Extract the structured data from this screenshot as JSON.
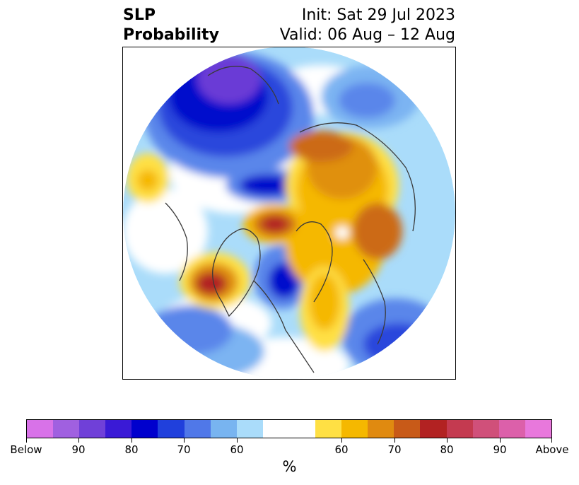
{
  "title": {
    "left_line1": "SLP",
    "left_line2": "Probability",
    "right_line1": "Init: Sat 29 Jul 2023",
    "right_line2": "Valid: 06 Aug – 12 Aug"
  },
  "colorbar": {
    "colors": [
      "#d872e8",
      "#a060e0",
      "#7040d8",
      "#3a1ad6",
      "#0000cd",
      "#2040dc",
      "#5078e8",
      "#78b4f0",
      "#aadcfa",
      "#ffffff",
      "#ffffff",
      "#ffe044",
      "#f5b800",
      "#e08a10",
      "#c85a18",
      "#b22222",
      "#c43a50",
      "#d0507a",
      "#dc60aa",
      "#e878dc"
    ],
    "tick_labels": [
      "Below",
      "90",
      "80",
      "70",
      "60",
      "60",
      "70",
      "80",
      "90",
      "Above"
    ],
    "unit": "%"
  },
  "map": {
    "projection": "north-polar-stereographic",
    "below_colors": {
      "c90": "#6a3ad6",
      "c80": "#0010cc",
      "c70": "#2a46dc",
      "c60": "#5a86ea",
      "c50": "#7cb4f2",
      "c40": "#aadcfa"
    },
    "above_colors": {
      "c40": "#ffe044",
      "c50": "#f5b800",
      "c60": "#e09010",
      "c70": "#cc6a16",
      "c80": "#b22222"
    }
  }
}
